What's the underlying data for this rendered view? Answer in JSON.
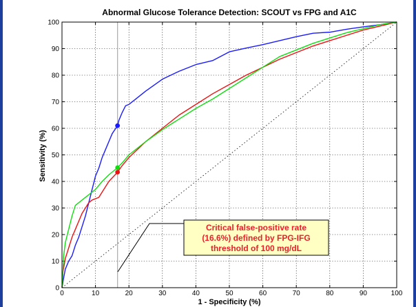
{
  "chart_data": {
    "type": "line",
    "title": "Abnormal Glucose Tolerance Detection: SCOUT vs FPG and A1C",
    "xlabel": "1 - Specificity (%)",
    "ylabel": "Sensitivity (%)",
    "xlim": [
      0,
      100
    ],
    "ylim": [
      0,
      100
    ],
    "xticks": [
      0,
      10,
      20,
      30,
      40,
      50,
      60,
      70,
      80,
      90,
      100
    ],
    "yticks": [
      0,
      10,
      20,
      30,
      40,
      50,
      60,
      70,
      80,
      90,
      100
    ],
    "grid": true,
    "series": [
      {
        "color": "#1a1aff",
        "points": [
          [
            0,
            0
          ],
          [
            0.4,
            3
          ],
          [
            1,
            7
          ],
          [
            2,
            10
          ],
          [
            3,
            12
          ],
          [
            4,
            16
          ],
          [
            5,
            19
          ],
          [
            6,
            23
          ],
          [
            7,
            27
          ],
          [
            8,
            32
          ],
          [
            9,
            37
          ],
          [
            10,
            42
          ],
          [
            11,
            45
          ],
          [
            12,
            49
          ],
          [
            13,
            52
          ],
          [
            14,
            55
          ],
          [
            15,
            58
          ],
          [
            16.6,
            61
          ],
          [
            17,
            63
          ],
          [
            18,
            66
          ],
          [
            19,
            68.5
          ],
          [
            20,
            69
          ],
          [
            22,
            71
          ],
          [
            25,
            74
          ],
          [
            30,
            78.5
          ],
          [
            35,
            81.5
          ],
          [
            40,
            84
          ],
          [
            45,
            85.5
          ],
          [
            50,
            88.8
          ],
          [
            55,
            90.2
          ],
          [
            60,
            91.5
          ],
          [
            65,
            93
          ],
          [
            70,
            94.5
          ],
          [
            75,
            95.8
          ],
          [
            80,
            96.2
          ],
          [
            85,
            97.3
          ],
          [
            90,
            98.2
          ],
          [
            95,
            99
          ],
          [
            100,
            100
          ]
        ],
        "marker_x": 16.6,
        "marker_y": 61
      },
      {
        "color": "#ee1111",
        "points": [
          [
            0,
            0
          ],
          [
            0.3,
            6
          ],
          [
            1,
            11
          ],
          [
            2,
            15
          ],
          [
            3,
            19
          ],
          [
            4,
            22
          ],
          [
            5,
            25
          ],
          [
            6,
            28
          ],
          [
            7,
            30
          ],
          [
            8,
            32
          ],
          [
            9,
            33
          ],
          [
            11,
            34
          ],
          [
            12,
            36
          ],
          [
            14,
            40
          ],
          [
            16.6,
            43.5
          ],
          [
            18,
            46
          ],
          [
            20,
            49
          ],
          [
            25,
            55
          ],
          [
            30,
            60
          ],
          [
            35,
            65
          ],
          [
            40,
            69
          ],
          [
            45,
            73
          ],
          [
            50,
            76.5
          ],
          [
            55,
            80
          ],
          [
            60,
            83
          ],
          [
            65,
            86
          ],
          [
            70,
            88.5
          ],
          [
            75,
            91
          ],
          [
            80,
            93
          ],
          [
            85,
            95
          ],
          [
            90,
            97
          ],
          [
            95,
            98.5
          ],
          [
            100,
            100
          ]
        ],
        "marker_x": 16.6,
        "marker_y": 43.5
      },
      {
        "color": "#11dd11",
        "points": [
          [
            0,
            0
          ],
          [
            0.2,
            4
          ],
          [
            0.5,
            12
          ],
          [
            1,
            17
          ],
          [
            2,
            22
          ],
          [
            3,
            27
          ],
          [
            4,
            31
          ],
          [
            6,
            33
          ],
          [
            8,
            35
          ],
          [
            10,
            37
          ],
          [
            12,
            40
          ],
          [
            14,
            42.5
          ],
          [
            16.6,
            45.2
          ],
          [
            18,
            47
          ],
          [
            20,
            50
          ],
          [
            25,
            55
          ],
          [
            30,
            59.5
          ],
          [
            35,
            63.5
          ],
          [
            40,
            67.5
          ],
          [
            45,
            71
          ],
          [
            50,
            75
          ],
          [
            55,
            79
          ],
          [
            60,
            83
          ],
          [
            65,
            87
          ],
          [
            70,
            89.5
          ],
          [
            75,
            92
          ],
          [
            80,
            94
          ],
          [
            85,
            96
          ],
          [
            90,
            97.5
          ],
          [
            95,
            99
          ],
          [
            100,
            100
          ]
        ],
        "marker_x": 16.6,
        "marker_y": 45.2
      }
    ],
    "reference_line": [
      [
        0,
        0
      ],
      [
        100,
        100
      ]
    ],
    "vertical_line_x": 16.6,
    "annotation": {
      "lines": [
        "Critical false-positive rate",
        "(16.6%) defined by FPG-IFG",
        "threshold of 100 mg/dL"
      ],
      "fill": "#ffffc4",
      "border": "#000000"
    }
  }
}
